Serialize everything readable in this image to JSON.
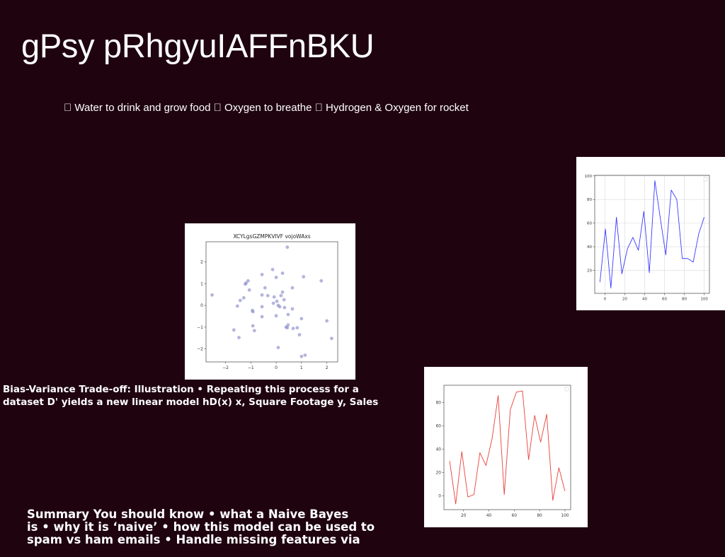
{
  "slide": {
    "background": "#1f0410",
    "title": "gPsy pRhgyuIAFFnBKU",
    "subtitle": " Water to drink and grow food  Oxygen to breathe  Hydrogen & Oxygen for rocket",
    "bias_text": "Bias-Variance Trade-off: Illustration • Repeating this process for a\ndataset D' yields a new linear model hD(x) x, Square Footage y, Sales",
    "summary_text": "Summary You should know • what a Naive Bayes\nis • why it is ‘naive’ • how this model can be used to\nspam vs ham emails • Handle missing features via"
  },
  "chart_data": [
    {
      "type": "scatter",
      "title": "XCYLgsGZMPKVIVF vojoWAxs",
      "color": "#8a8dcb",
      "grid": false,
      "xlim": [
        -2.77,
        2.43
      ],
      "ylim": [
        -2.6,
        2.93
      ],
      "xticks": [
        -2,
        -1,
        0,
        1,
        2
      ],
      "xtick_labels": [
        "−2",
        "−1",
        "0",
        "1",
        "2"
      ],
      "yticks": [
        -2,
        -1,
        0,
        1,
        2
      ],
      "ytick_labels": [
        "−2",
        "−1",
        "0",
        "1",
        "2"
      ],
      "x": [
        0.44,
        -2.53,
        -0.14,
        0.25,
        -0.56,
        -1.11,
        -1.19,
        -1.22,
        0.0,
        1.08,
        1.78,
        -1.06,
        -0.44,
        0.64,
        0.25,
        -1.28,
        -1.42,
        -0.56,
        -0.33,
        -0.08,
        0.19,
        0.31,
        -0.11,
        0.03,
        0.08,
        0.14,
        -1.53,
        -0.56,
        0.33,
        0.64,
        -0.94,
        -0.92,
        0.47,
        0.0,
        -0.56,
        1.0,
        2.0,
        -0.92,
        0.47,
        0.39,
        0.44,
        0.67,
        0.83,
        -1.67,
        -0.86,
        0.92,
        -1.47,
        2.19,
        0.08,
        1.14,
        1.0
      ],
      "y": [
        2.68,
        0.48,
        1.65,
        1.48,
        1.42,
        1.13,
        1.03,
        0.98,
        1.29,
        1.32,
        1.13,
        0.71,
        0.81,
        0.81,
        0.61,
        0.35,
        0.23,
        0.48,
        0.45,
        0.39,
        0.45,
        0.26,
        0.1,
        0.19,
        0.0,
        -0.06,
        -0.03,
        -0.06,
        -0.1,
        -0.16,
        -0.23,
        -0.29,
        -0.42,
        -0.48,
        -0.52,
        -0.61,
        -0.71,
        -0.94,
        -0.9,
        -1.0,
        -1.03,
        -1.06,
        -1.03,
        -1.13,
        -1.16,
        -1.35,
        -1.48,
        -1.52,
        -1.94,
        -2.29,
        -2.35
      ]
    },
    {
      "type": "line",
      "color": "#3a3aff",
      "grid": true,
      "legend": "top-right",
      "xlim": [
        -10.25,
        105.25
      ],
      "ylim": [
        0.5,
        100.5
      ],
      "xticks": [
        0,
        20,
        40,
        60,
        80,
        100
      ],
      "xtick_labels": [
        "0",
        "20",
        "40",
        "60",
        "80",
        "100"
      ],
      "yticks": [
        20,
        40,
        60,
        80,
        100
      ],
      "ytick_labels": [
        "20",
        "40",
        "60",
        "80",
        "100"
      ],
      "x": [
        -5,
        0.5,
        6,
        11.6,
        17.1,
        22.6,
        28.2,
        33.7,
        39.2,
        44.7,
        50.3,
        55.8,
        61.3,
        66.8,
        72.4,
        77.9,
        83.4,
        88.9,
        94.5,
        100
      ],
      "y": [
        10,
        55,
        5,
        65,
        17,
        38,
        48,
        37,
        70,
        18,
        96,
        64,
        33,
        88,
        80,
        30,
        30,
        27,
        51,
        65
      ]
    },
    {
      "type": "line",
      "color": "#e8403a",
      "grid": false,
      "legend": "top-right",
      "xlim": [
        4.5,
        104.5
      ],
      "ylim": [
        -11.9,
        94.9
      ],
      "xticks": [
        20,
        40,
        60,
        80,
        100
      ],
      "xtick_labels": [
        "20",
        "40",
        "60",
        "80",
        "100"
      ],
      "yticks": [
        0,
        20,
        40,
        60,
        80
      ],
      "ytick_labels": [
        "0",
        "20",
        "40",
        "60",
        "80"
      ],
      "x": [
        9,
        13.8,
        18.6,
        23.4,
        28.2,
        32.9,
        37.7,
        42.5,
        47.3,
        52.1,
        56.9,
        61.7,
        66.5,
        71.3,
        76.1,
        80.8,
        85.6,
        90.4,
        95.2,
        100
      ],
      "y": [
        30,
        -7,
        38,
        -1,
        1,
        37,
        26,
        49,
        86,
        1,
        74,
        89,
        90,
        31,
        69,
        46,
        70,
        -4,
        24,
        4
      ]
    }
  ]
}
